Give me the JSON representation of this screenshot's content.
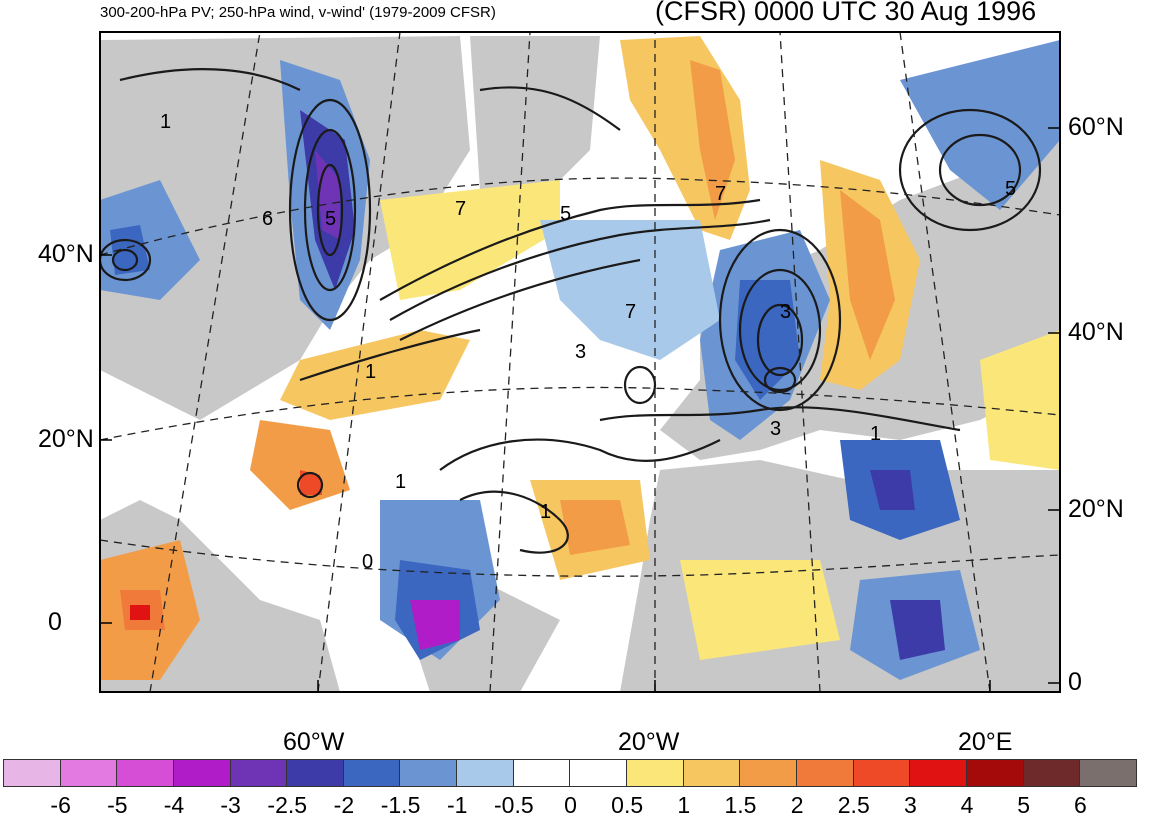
{
  "header": {
    "left_title": "300-200-hPa PV; 250-hPa wind, v-wind' (1979-2009 CFSR)",
    "right_title": "(CFSR) 0000 UTC 30 Aug 1996"
  },
  "axes": {
    "left_lat_labels": [
      "40°N",
      "20°N",
      "0"
    ],
    "right_lat_labels": [
      "60°N",
      "40°N",
      "20°N",
      "0"
    ],
    "lon_labels": [
      "60°W",
      "20°W",
      "20°E"
    ]
  },
  "contour_labels": [
    "1",
    "5",
    "7",
    "7",
    "5",
    "3",
    "1",
    "1",
    "3",
    "7",
    "3",
    "1",
    "5",
    "6",
    "1",
    "0"
  ],
  "colorbar": {
    "colors": [
      "#e7b6e7",
      "#e27ae2",
      "#d54ed5",
      "#b11cc9",
      "#6e34b5",
      "#3d3ba8",
      "#3b67c0",
      "#6b95d2",
      "#a8c9ea",
      "#ffffff",
      "#ffffff",
      "#fbe779",
      "#f6c660",
      "#f29c48",
      "#f07a3a",
      "#ef4a28",
      "#e11212",
      "#a50a0a",
      "#6e2a2a",
      "#7a6f6d"
    ],
    "labels": [
      "-6",
      "-5",
      "-4",
      "-3",
      "-2.5",
      "-2",
      "-1.5",
      "-1",
      "-0.5",
      "0",
      "0.5",
      "1",
      "1.5",
      "2",
      "2.5",
      "3",
      "4",
      "5",
      "6"
    ]
  },
  "legend_colors": {
    "land": "#c8c8c8",
    "contour": "#1a1a1a"
  }
}
